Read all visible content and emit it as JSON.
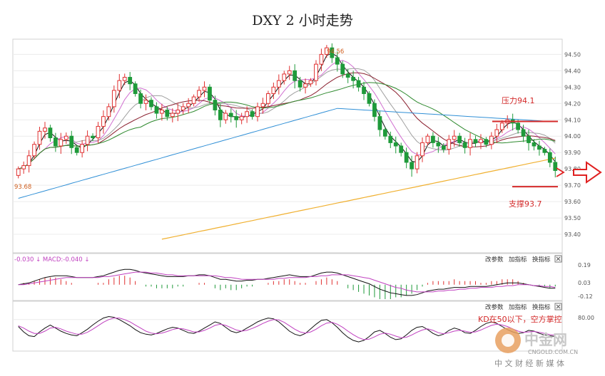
{
  "title": "DXY 2 小时走势",
  "colors": {
    "up": "#e03030",
    "down": "#1f9a3a",
    "ma_black": "#111111",
    "ma_magenta": "#d070d0",
    "ma_gray": "#a0a0a0",
    "ma_darkred": "#8a1f2e",
    "ma_green": "#2f8a2f",
    "ma_blue": "#2f8fd6",
    "ma_orange": "#f0b030",
    "annotation": "#d42a2a"
  },
  "main_panel": {
    "annotations": {
      "high_label": "94.56",
      "low_label": "93.68",
      "resistance_label": "压力94.1",
      "support_label": "支撑93.7"
    }
  },
  "macd_panel": {
    "header": "-0.030 ↓ MACD:-0.040 ↓",
    "buttons": [
      "改参数",
      "加指标",
      "换指标"
    ],
    "ticks": [
      "0.19",
      "0.03",
      "-0.12"
    ]
  },
  "kd_panel": {
    "buttons": [
      "改参数",
      "加指标",
      "换指标"
    ],
    "ticks": [
      "80.00"
    ],
    "annotation": "KD在50以下，空方掌控"
  },
  "watermark": {
    "logo_text": "中金网",
    "domain": "CNGOLD.COM.CN",
    "tagline": "中 文 财 经 新 媒 体"
  },
  "chart_data": {
    "type": "candlestick",
    "title": "DXY 2 小时走势",
    "xlabel": "",
    "ylabel": "",
    "ylim": [
      93.3,
      94.58
    ],
    "yticks": [
      94.5,
      94.4,
      94.3,
      94.2,
      94.1,
      94.0,
      93.9,
      93.8,
      93.7,
      93.6,
      93.5,
      93.4
    ],
    "ytick_labels": [
      "94.50",
      "94.40",
      "94.30",
      "94.20",
      "94.10",
      "94.00",
      "93.90",
      "93.80",
      "93.70",
      "93.60",
      "93.50",
      "93.40"
    ],
    "grid": true,
    "closes": [
      93.8,
      93.82,
      93.88,
      93.95,
      94.03,
      94.05,
      93.99,
      93.94,
      93.98,
      94.0,
      93.93,
      93.9,
      93.95,
      94.0,
      93.99,
      94.06,
      94.12,
      94.18,
      94.28,
      94.34,
      94.36,
      94.32,
      94.26,
      94.2,
      94.22,
      94.18,
      94.14,
      94.16,
      94.12,
      94.14,
      94.16,
      94.18,
      94.2,
      94.24,
      94.28,
      94.3,
      94.22,
      94.16,
      94.1,
      94.14,
      94.12,
      94.1,
      94.12,
      94.15,
      94.12,
      94.18,
      94.2,
      94.26,
      94.3,
      94.34,
      94.38,
      94.4,
      94.34,
      94.3,
      94.32,
      94.34,
      94.44,
      94.5,
      94.54,
      94.48,
      94.44,
      94.38,
      94.36,
      94.34,
      94.3,
      94.26,
      94.2,
      94.12,
      94.04,
      94.0,
      93.96,
      93.94,
      93.9,
      93.84,
      93.8,
      93.88,
      93.96,
      94.0,
      93.96,
      93.94,
      93.92,
      93.98,
      94.0,
      93.96,
      93.93,
      93.98,
      93.96,
      93.98,
      93.95,
      94.0,
      94.04,
      94.08,
      94.1,
      94.08,
      94.04,
      94.0,
      93.96,
      93.94,
      93.92,
      93.9,
      93.84,
      93.79
    ],
    "resistance": 94.09,
    "support": 93.7,
    "macd": {
      "dif": [
        0.0,
        0.01,
        0.02,
        0.04,
        0.06,
        0.08,
        0.09,
        0.1,
        0.1,
        0.1,
        0.09,
        0.08,
        0.08,
        0.08,
        0.08,
        0.09,
        0.1,
        0.12,
        0.14,
        0.16,
        0.17,
        0.17,
        0.16,
        0.14,
        0.13,
        0.12,
        0.11,
        0.1,
        0.09,
        0.09,
        0.09,
        0.09,
        0.1,
        0.1,
        0.11,
        0.11,
        0.1,
        0.08,
        0.06,
        0.06,
        0.05,
        0.04,
        0.04,
        0.05,
        0.05,
        0.06,
        0.06,
        0.07,
        0.08,
        0.09,
        0.1,
        0.11,
        0.1,
        0.09,
        0.09,
        0.09,
        0.11,
        0.13,
        0.14,
        0.14,
        0.13,
        0.11,
        0.09,
        0.07,
        0.05,
        0.03,
        0.01,
        -0.02,
        -0.05,
        -0.07,
        -0.09,
        -0.1,
        -0.11,
        -0.12,
        -0.12,
        -0.11,
        -0.09,
        -0.07,
        -0.06,
        -0.05,
        -0.05,
        -0.04,
        -0.03,
        -0.03,
        -0.03,
        -0.02,
        -0.02,
        -0.02,
        -0.02,
        -0.01,
        0.0,
        0.01,
        0.02,
        0.02,
        0.02,
        0.01,
        0.0,
        -0.01,
        -0.02,
        -0.03,
        -0.04,
        -0.04
      ],
      "dea": [
        0.0,
        0.0,
        0.01,
        0.02,
        0.03,
        0.04,
        0.05,
        0.06,
        0.07,
        0.08,
        0.08,
        0.08,
        0.08,
        0.08,
        0.08,
        0.08,
        0.09,
        0.09,
        0.1,
        0.11,
        0.12,
        0.13,
        0.14,
        0.14,
        0.14,
        0.13,
        0.13,
        0.12,
        0.11,
        0.11,
        0.1,
        0.1,
        0.1,
        0.1,
        0.1,
        0.1,
        0.1,
        0.1,
        0.09,
        0.08,
        0.08,
        0.07,
        0.06,
        0.06,
        0.06,
        0.06,
        0.06,
        0.06,
        0.06,
        0.07,
        0.07,
        0.08,
        0.08,
        0.08,
        0.08,
        0.09,
        0.09,
        0.1,
        0.1,
        0.11,
        0.11,
        0.11,
        0.11,
        0.1,
        0.09,
        0.08,
        0.07,
        0.05,
        0.03,
        0.01,
        -0.01,
        -0.03,
        -0.04,
        -0.06,
        -0.07,
        -0.08,
        -0.08,
        -0.08,
        -0.08,
        -0.07,
        -0.07,
        -0.06,
        -0.06,
        -0.05,
        -0.05,
        -0.04,
        -0.04,
        -0.03,
        -0.03,
        -0.03,
        -0.02,
        -0.02,
        -0.01,
        -0.01,
        0.0,
        0.0,
        0.0,
        -0.01,
        -0.01,
        -0.02,
        -0.02,
        -0.03
      ],
      "ylim": [
        -0.16,
        0.22
      ]
    },
    "kd": {
      "k": [
        62,
        48,
        38,
        36,
        48,
        58,
        66,
        58,
        50,
        44,
        40,
        38,
        46,
        55,
        66,
        76,
        84,
        88,
        86,
        80,
        72,
        64,
        54,
        46,
        42,
        40,
        44,
        50,
        56,
        60,
        58,
        52,
        46,
        44,
        50,
        58,
        66,
        74,
        70,
        60,
        50,
        46,
        50,
        58,
        66,
        74,
        80,
        84,
        82,
        74,
        62,
        50,
        42,
        38,
        44,
        56,
        68,
        78,
        80,
        72,
        60,
        46,
        34,
        26,
        22,
        26,
        36,
        48,
        52,
        44,
        34,
        28,
        30,
        40,
        52,
        60,
        62,
        54,
        44,
        38,
        42,
        52,
        58,
        54,
        46,
        44,
        52,
        62,
        70,
        74,
        70,
        62,
        54,
        48,
        44,
        46,
        52,
        50,
        44,
        40,
        38,
        36
      ],
      "d": [
        64,
        58,
        50,
        44,
        44,
        50,
        58,
        60,
        56,
        50,
        46,
        42,
        42,
        47,
        55,
        64,
        73,
        80,
        84,
        84,
        80,
        74,
        66,
        58,
        50,
        45,
        43,
        45,
        49,
        54,
        57,
        56,
        52,
        48,
        48,
        52,
        58,
        65,
        68,
        65,
        59,
        53,
        50,
        52,
        57,
        63,
        70,
        76,
        80,
        79,
        73,
        64,
        55,
        48,
        45,
        48,
        55,
        64,
        71,
        73,
        68,
        60,
        50,
        41,
        33,
        28,
        29,
        35,
        42,
        45,
        42,
        37,
        33,
        34,
        40,
        47,
        53,
        56,
        52,
        46,
        43,
        46,
        50,
        52,
        50,
        47,
        48,
        53,
        59,
        65,
        68,
        66,
        62,
        56,
        50,
        47,
        48,
        49,
        47,
        44,
        41,
        39
      ],
      "ylim": [
        0,
        100
      ],
      "ytick": 80
    }
  }
}
